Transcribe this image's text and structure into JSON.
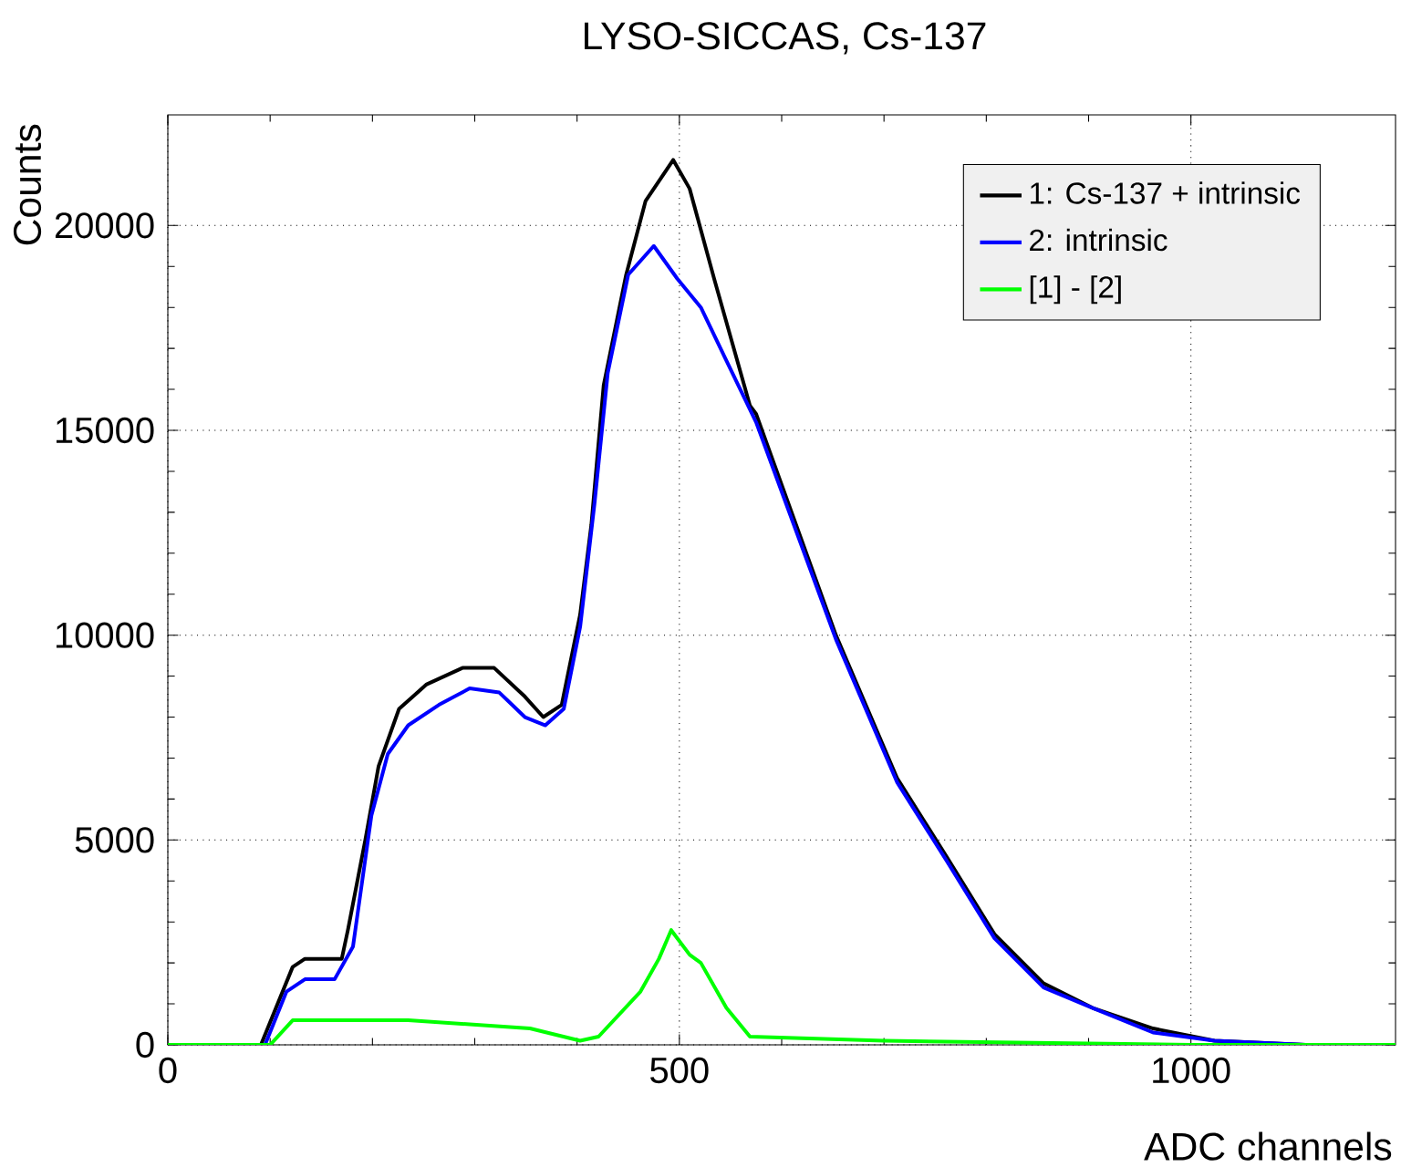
{
  "chart_data": {
    "type": "line",
    "title": "LYSO-SICCAS, Cs-137",
    "xlabel": "ADC channels",
    "ylabel": "Counts",
    "xlim": [
      0,
      1200
    ],
    "ylim": [
      0,
      22700
    ],
    "xticks": [
      0,
      500,
      1000
    ],
    "yticks": [
      0,
      5000,
      10000,
      15000,
      20000
    ],
    "grid": true,
    "legend": "top right",
    "line_style": "solid",
    "series": [
      {
        "name": "1: Cs-137 + intrinsic",
        "color": "#000000",
        "x": [
          0,
          91,
          122,
          134,
          170,
          176,
          193,
          206,
          226,
          253,
          288,
          319,
          349,
          367,
          385,
          403,
          414,
          426,
          448,
          467,
          494,
          510,
          534,
          569,
          575,
          653,
          713,
          761,
          808,
          856,
          904,
          963,
          1023,
          1112,
          1200
        ],
        "values": [
          0,
          0,
          1900,
          2100,
          2100,
          2800,
          5000,
          6800,
          8200,
          8800,
          9200,
          9200,
          8500,
          8000,
          8300,
          10500,
          12700,
          16100,
          18800,
          20600,
          21600,
          20900,
          18700,
          15600,
          15400,
          10000,
          6500,
          4600,
          2700,
          1500,
          900,
          400,
          100,
          0,
          0
        ]
      },
      {
        "name": "2: intrinsic",
        "color": "#0000ff",
        "x": [
          0,
          95,
          116,
          134,
          163,
          181,
          199,
          215,
          235,
          265,
          295,
          324,
          349,
          369,
          387,
          403,
          417,
          430,
          450,
          475,
          498,
          521,
          546,
          575,
          653,
          713,
          761,
          808,
          856,
          904,
          963,
          1023,
          1112,
          1200
        ],
        "values": [
          0,
          0,
          1300,
          1600,
          1600,
          2400,
          5600,
          7100,
          7800,
          8300,
          8700,
          8600,
          8000,
          7800,
          8200,
          10200,
          13200,
          16400,
          18800,
          19500,
          18700,
          18000,
          16700,
          15200,
          9900,
          6400,
          4500,
          2600,
          1400,
          900,
          300,
          100,
          0,
          0
        ]
      },
      {
        "name": "[1] - [2]",
        "color": "#00ff00",
        "x": [
          0,
          100,
          122,
          200,
          235,
          295,
          354,
          403,
          421,
          462,
          480,
          492,
          510,
          521,
          546,
          569,
          700,
          1000,
          1200
        ],
        "values": [
          0,
          0,
          600,
          600,
          600,
          500,
          400,
          100,
          200,
          1300,
          2100,
          2800,
          2200,
          2000,
          900,
          200,
          100,
          0,
          0
        ]
      }
    ]
  }
}
